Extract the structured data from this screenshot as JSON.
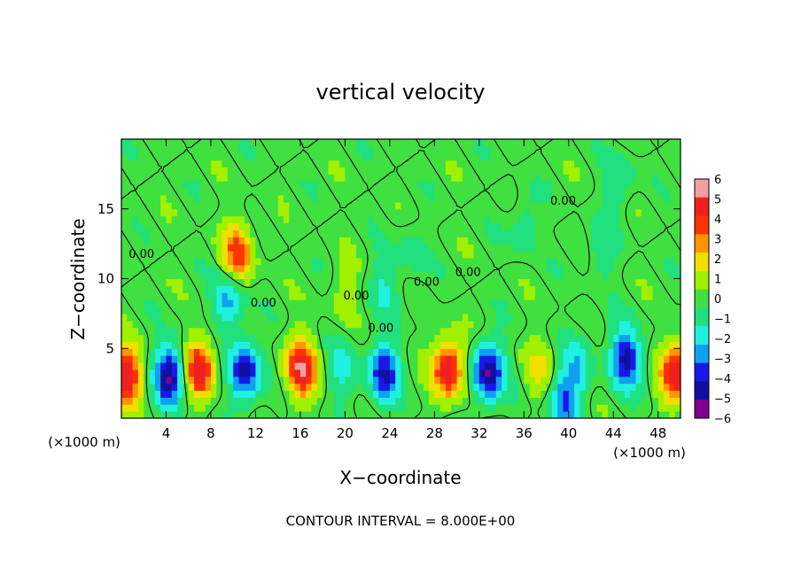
{
  "chart_data": {
    "type": "heatmap",
    "title": "vertical velocity",
    "xlabel": "X−coordinate",
    "ylabel": "Z−coordinate",
    "x_unit_left": "(×1000 m)",
    "x_unit_right": "(×1000 m)",
    "footer": "CONTOUR INTERVAL = 8.000E+00",
    "xlim": [
      0,
      50
    ],
    "ylim": [
      0,
      20
    ],
    "x_ticks": [
      4,
      8,
      12,
      16,
      20,
      24,
      28,
      32,
      36,
      40,
      44,
      48
    ],
    "y_ticks": [
      5,
      10,
      15
    ],
    "contour_label": "0.00",
    "contour_label_points": [
      {
        "x": 1.8,
        "y": 11.5
      },
      {
        "x": 12.7,
        "y": 8.0
      },
      {
        "x": 21.0,
        "y": 8.5
      },
      {
        "x": 23.2,
        "y": 6.2
      },
      {
        "x": 27.3,
        "y": 9.5
      },
      {
        "x": 31.0,
        "y": 10.2
      },
      {
        "x": 39.5,
        "y": 15.3
      }
    ],
    "colorbar": {
      "ticks": [
        6,
        5,
        4,
        3,
        2,
        1,
        0,
        -1,
        -2,
        -3,
        -4,
        -5,
        -6
      ],
      "tick_labels": [
        "6",
        "5",
        "4",
        "3",
        "2",
        "1",
        "0",
        "−1",
        "−2",
        "−3",
        "−4",
        "−5",
        "−6"
      ],
      "colors": [
        "#f2a0a0",
        "#f02020",
        "#ff3200",
        "#ff9600",
        "#f0e000",
        "#a0f000",
        "#40e040",
        "#20e080",
        "#20f0e0",
        "#10a0f0",
        "#1818e8",
        "#1010a0",
        "#800090"
      ]
    },
    "features": [
      {
        "x": 0.4,
        "z": 3.0,
        "w": 5.5
      },
      {
        "x": 4.3,
        "z": 3.1,
        "w": -5.5
      },
      {
        "x": 7.0,
        "z": 3.6,
        "w": 5.2
      },
      {
        "x": 11.0,
        "z": 3.3,
        "w": -5.0
      },
      {
        "x": 16.1,
        "z": 3.6,
        "w": 5.5
      },
      {
        "x": 19.8,
        "z": 3.5,
        "w": -1.8
      },
      {
        "x": 23.5,
        "z": 3.3,
        "w": -4.5
      },
      {
        "x": 29.2,
        "z": 3.6,
        "w": 5.5
      },
      {
        "x": 32.8,
        "z": 3.3,
        "w": -5.5
      },
      {
        "x": 37.3,
        "z": 3.5,
        "w": 1.6
      },
      {
        "x": 39.6,
        "z": 1.2,
        "w": -3.5
      },
      {
        "x": 40.8,
        "z": 3.8,
        "w": -2.0
      },
      {
        "x": 45.1,
        "z": 4.3,
        "w": -4.8
      },
      {
        "x": 49.6,
        "z": 3.2,
        "w": 5.5
      },
      {
        "x": 10.4,
        "z": 11.8,
        "w": 4.0
      },
      {
        "x": 9.6,
        "z": 8.5,
        "w": -3.0
      },
      {
        "x": 23.5,
        "z": 9.5,
        "w": -1.5
      },
      {
        "x": 26.0,
        "z": 12.0,
        "w": -1.0
      },
      {
        "x": 36.0,
        "z": 14.0,
        "w": -1.2
      },
      {
        "x": 43.0,
        "z": 12.0,
        "w": -1.1
      },
      {
        "x": 44.5,
        "z": 17.0,
        "w": -1.3
      },
      {
        "x": 20.0,
        "z": 9.3,
        "w": 1.0
      }
    ]
  }
}
